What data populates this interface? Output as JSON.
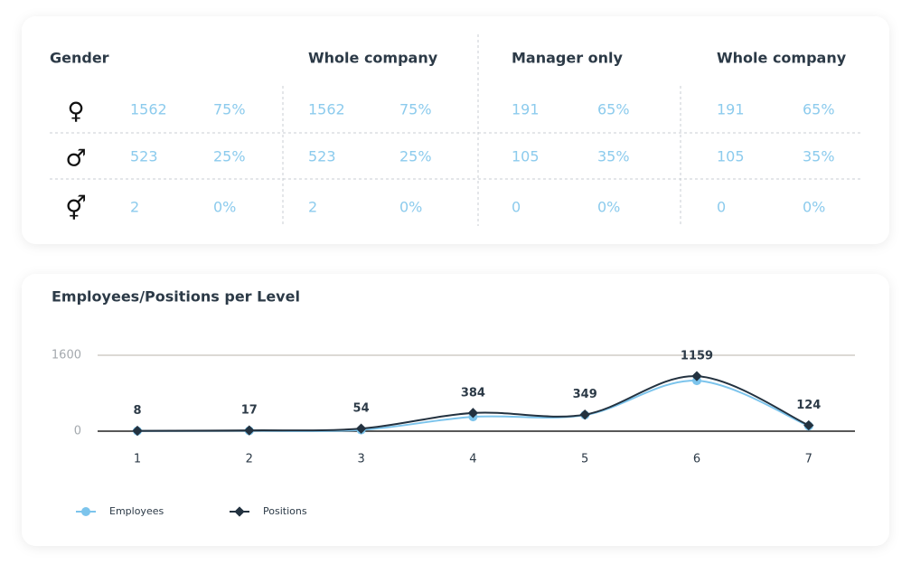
{
  "table": {
    "headers": [
      "Gender",
      "Whole company",
      "Manager only",
      "Whole company"
    ],
    "rows": [
      [
        "♀",
        "1562",
        "75%",
        "1562",
        "75%",
        "191",
        "65%",
        "191",
        "65%"
      ],
      [
        "♂",
        "523",
        "25%",
        "523",
        "25%",
        "105",
        "35%",
        "105",
        "35%"
      ],
      [
        "⚥",
        "2",
        "0%",
        "2",
        "0%",
        "0",
        "0%",
        "0",
        "0%"
      ]
    ]
  },
  "chart_data": {
    "type": "line",
    "title": "Employees/Positions per Level",
    "categories": [
      "1",
      "2",
      "3",
      "4",
      "5",
      "6",
      "7"
    ],
    "series": [
      {
        "name": "Employees",
        "color": "#7cc4ec",
        "values": [
          5,
          10,
          27,
          302,
          340,
          1064,
          110
        ]
      },
      {
        "name": "Positions",
        "color": "#233240",
        "values": [
          8,
          17,
          54,
          384,
          349,
          1159,
          124
        ]
      }
    ],
    "ylim": [
      0,
      1600
    ],
    "yticks": [
      0,
      1600
    ],
    "grid": true,
    "data_labels_series": 1
  }
}
